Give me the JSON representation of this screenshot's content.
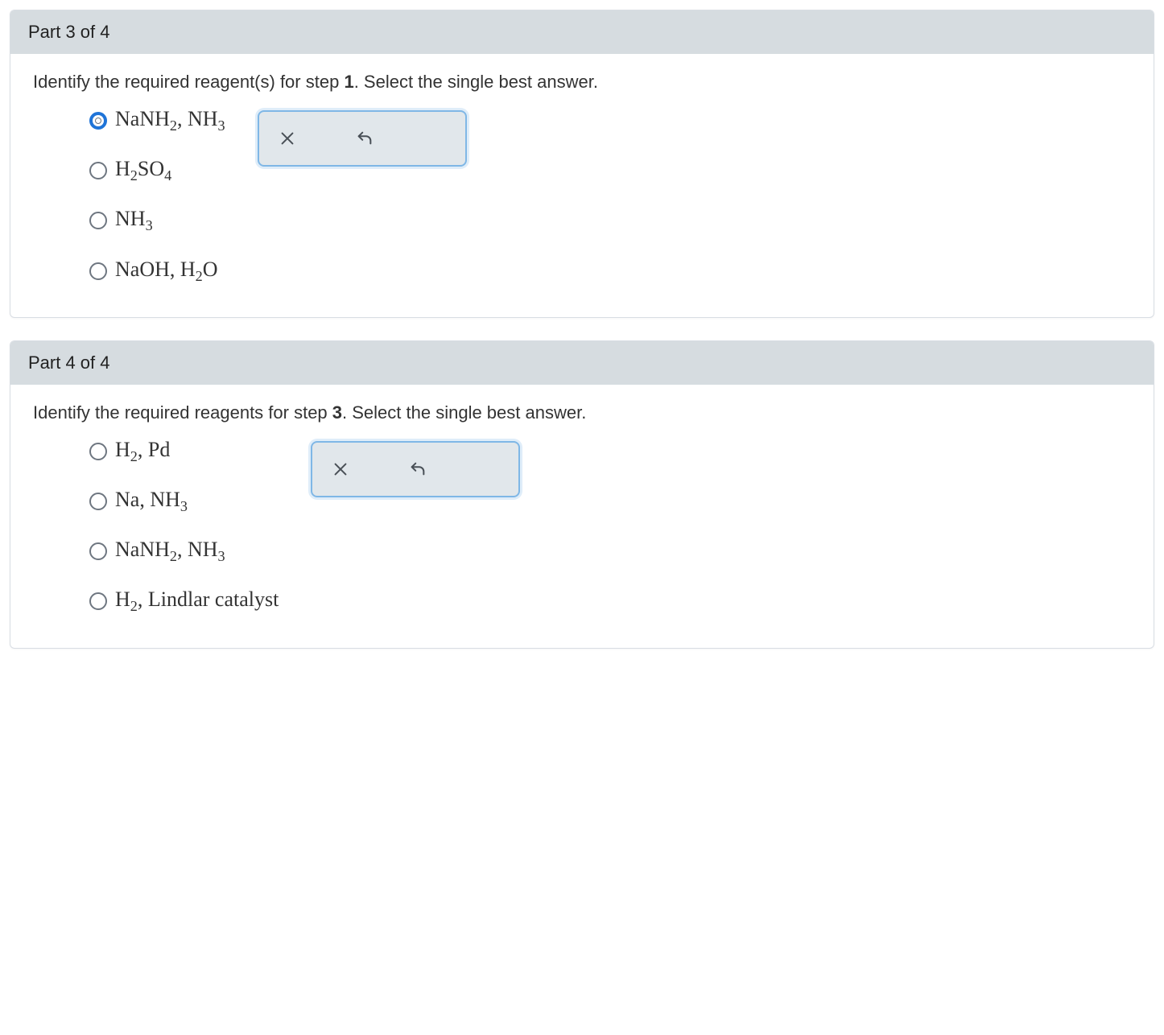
{
  "colors": {
    "header_bg": "#d6dce0",
    "card_border": "#d8dde3",
    "feedback_border": "#7fb7e6",
    "feedback_bg": "#e1e7eb",
    "radio_border": "#6e7680",
    "radio_selected": "#1f74d8",
    "text": "#333333"
  },
  "parts": [
    {
      "header": "Part 3 of 4",
      "question_pre": "Identify the required reagent(s) for step ",
      "question_bold": "1",
      "question_post": ". Select the single best answer.",
      "options": [
        {
          "label_html": "NaNH<sub>2</sub>, NH<sub>3</sub>",
          "selected": true
        },
        {
          "label_html": "H<sub>2</sub>SO<sub>4</sub>",
          "selected": false
        },
        {
          "label_html": "NH<sub>3</sub>",
          "selected": false
        },
        {
          "label_html": "NaOH, H<sub>2</sub>O",
          "selected": false
        }
      ]
    },
    {
      "header": "Part 4 of 4",
      "question_pre": "Identify the required reagents for step ",
      "question_bold": "3",
      "question_post": ". Select the single best answer.",
      "options": [
        {
          "label_html": "H<sub>2</sub>, Pd",
          "selected": false
        },
        {
          "label_html": "Na, NH<sub>3</sub>",
          "selected": false
        },
        {
          "label_html": "NaNH<sub>2</sub>, NH<sub>3</sub>",
          "selected": false
        },
        {
          "label_html": "H<sub>2</sub>, Lindlar catalyst",
          "selected": false
        }
      ]
    }
  ]
}
